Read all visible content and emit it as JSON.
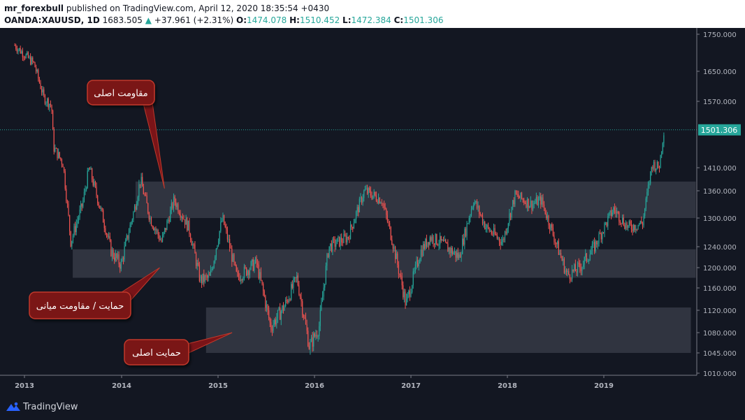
{
  "header": {
    "author": "mr_forexbull",
    "published": "published on TradingView.com, April 12, 2020 18:35:54 +0430",
    "symbol": "OANDA:XAUUSD, 1D",
    "price": "1683.505",
    "change": "+37.961 (+2.31%)",
    "o_label": "O:",
    "o_value": "1474.078",
    "h_label": "H:",
    "h_value": "1510.452",
    "l_label": "L:",
    "l_value": "1472.384",
    "c_label": "C:",
    "c_value": "1501.306"
  },
  "footer": {
    "brand": "TradingView"
  },
  "colors": {
    "bg": "#131722",
    "up": "#26a69a",
    "down": "#ef5350",
    "zone": "#363a45",
    "callout": "#7a1418",
    "callout_border": "#c0392b",
    "price_tag": "#26a69a"
  },
  "chart_data": {
    "type": "candlestick",
    "instrument": "OANDA:XAUUSD",
    "timeframe": "1D",
    "x_ticks": [
      "2013",
      "2014",
      "2015",
      "2016",
      "2017",
      "2018",
      "2019"
    ],
    "y_ticks": [
      "1750.000",
      "1650.000",
      "1570.000",
      "1410.000",
      "1360.000",
      "1300.000",
      "1240.000",
      "1200.000",
      "1160.000",
      "1120.000",
      "1080.000",
      "1045.000",
      "1010.000"
    ],
    "ylim": [
      1010,
      1750
    ],
    "last_price_label": "1501.306",
    "last_price": 1501.306,
    "path": [
      {
        "t": 2012.9,
        "p": 1720
      },
      {
        "t": 2013.1,
        "p": 1670
      },
      {
        "t": 2013.2,
        "p": 1580
      },
      {
        "t": 2013.28,
        "p": 1560
      },
      {
        "t": 2013.3,
        "p": 1460
      },
      {
        "t": 2013.4,
        "p": 1420
      },
      {
        "t": 2013.48,
        "p": 1250
      },
      {
        "t": 2013.6,
        "p": 1330
      },
      {
        "t": 2013.67,
        "p": 1410
      },
      {
        "t": 2013.8,
        "p": 1310
      },
      {
        "t": 2013.9,
        "p": 1230
      },
      {
        "t": 2014.0,
        "p": 1205
      },
      {
        "t": 2014.15,
        "p": 1330
      },
      {
        "t": 2014.2,
        "p": 1385
      },
      {
        "t": 2014.3,
        "p": 1300
      },
      {
        "t": 2014.42,
        "p": 1250
      },
      {
        "t": 2014.55,
        "p": 1340
      },
      {
        "t": 2014.7,
        "p": 1280
      },
      {
        "t": 2014.82,
        "p": 1175
      },
      {
        "t": 2014.92,
        "p": 1180
      },
      {
        "t": 2015.05,
        "p": 1300
      },
      {
        "t": 2015.2,
        "p": 1180
      },
      {
        "t": 2015.4,
        "p": 1210
      },
      {
        "t": 2015.55,
        "p": 1090
      },
      {
        "t": 2015.7,
        "p": 1130
      },
      {
        "t": 2015.82,
        "p": 1180
      },
      {
        "t": 2015.95,
        "p": 1055
      },
      {
        "t": 2016.05,
        "p": 1090
      },
      {
        "t": 2016.15,
        "p": 1240
      },
      {
        "t": 2016.35,
        "p": 1260
      },
      {
        "t": 2016.52,
        "p": 1360
      },
      {
        "t": 2016.7,
        "p": 1340
      },
      {
        "t": 2016.8,
        "p": 1260
      },
      {
        "t": 2016.95,
        "p": 1130
      },
      {
        "t": 2017.1,
        "p": 1230
      },
      {
        "t": 2017.2,
        "p": 1260
      },
      {
        "t": 2017.3,
        "p": 1250
      },
      {
        "t": 2017.5,
        "p": 1220
      },
      {
        "t": 2017.65,
        "p": 1340
      },
      {
        "t": 2017.78,
        "p": 1280
      },
      {
        "t": 2017.95,
        "p": 1250
      },
      {
        "t": 2018.08,
        "p": 1350
      },
      {
        "t": 2018.25,
        "p": 1330
      },
      {
        "t": 2018.35,
        "p": 1340
      },
      {
        "t": 2018.5,
        "p": 1250
      },
      {
        "t": 2018.62,
        "p": 1185
      },
      {
        "t": 2018.75,
        "p": 1200
      },
      {
        "t": 2018.9,
        "p": 1240
      },
      {
        "t": 2019.1,
        "p": 1320
      },
      {
        "t": 2019.25,
        "p": 1280
      },
      {
        "t": 2019.4,
        "p": 1290
      },
      {
        "t": 2019.5,
        "p": 1420
      },
      {
        "t": 2019.57,
        "p": 1410
      },
      {
        "t": 2019.62,
        "p": 1500
      }
    ],
    "zones": [
      {
        "name": "main-resistance-zone",
        "t0": 2014.15,
        "t1": 2019.95,
        "low": 1300,
        "high": 1380
      },
      {
        "name": "middle-support-zone",
        "t0": 2013.5,
        "t1": 2019.95,
        "low": 1180,
        "high": 1235
      },
      {
        "name": "main-support-zone",
        "t0": 2014.88,
        "t1": 2019.9,
        "low": 1045,
        "high": 1125
      }
    ],
    "annotations": [
      {
        "text": "مقاومت اصلی",
        "target_t": 2014.45,
        "target_p": 1365
      },
      {
        "text": "حمایت / مقاومت میانی",
        "target_t": 2014.4,
        "target_p": 1200
      },
      {
        "text": "حمایت اصلی",
        "target_t": 2015.15,
        "target_p": 1080
      }
    ]
  }
}
